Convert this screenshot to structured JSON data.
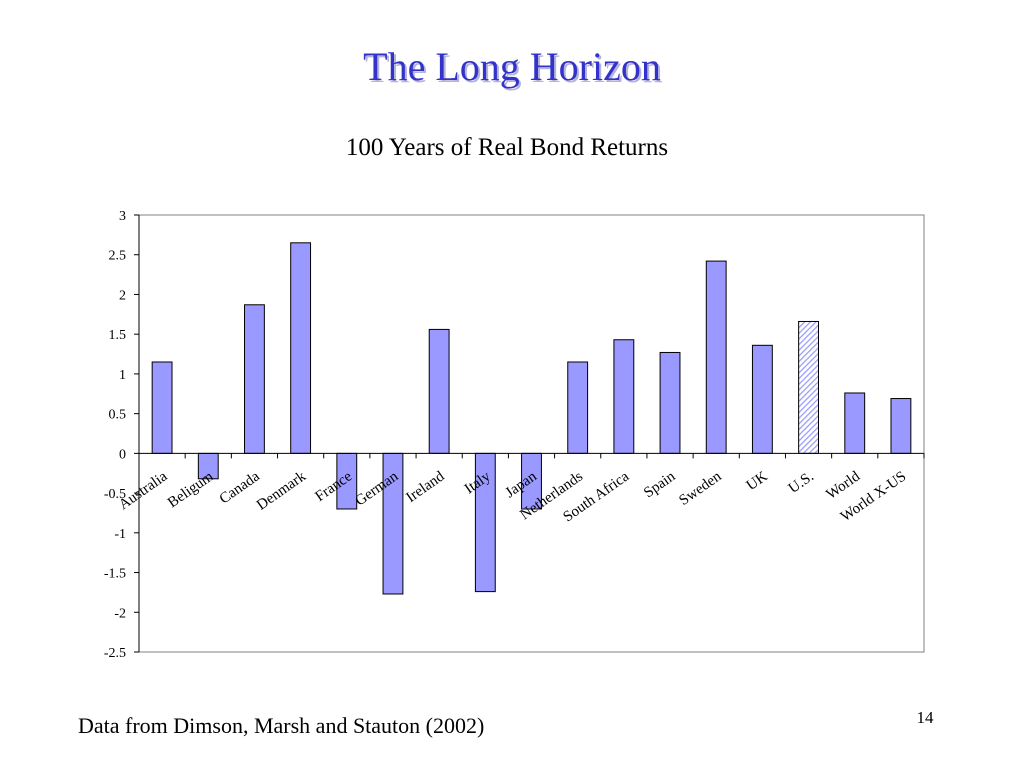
{
  "slide": {
    "title": "The Long Horizon",
    "footnote": "Data from Dimson, Marsh and Stauton (2002)",
    "page_number": "14"
  },
  "colors": {
    "title": "#3333cc",
    "bar_fill": "#9999ff",
    "bar_stroke": "#000000",
    "highlight_hatch": "#9999ff"
  },
  "chart_data": {
    "type": "bar",
    "title": "100 Years of Real Bond Returns",
    "xlabel": "",
    "ylabel": "",
    "ylim": [
      -2.5,
      3
    ],
    "yticks": [
      3,
      2.5,
      2,
      1.5,
      1,
      0.5,
      0,
      -0.5,
      -1,
      -1.5,
      -2,
      -2.5
    ],
    "ytick_labels": [
      "3",
      "2.5",
      "2",
      "1.5",
      "1",
      "0.5",
      "0",
      "-0.5",
      "-1",
      "-1.5",
      "-2",
      "-2.5"
    ],
    "grid": false,
    "legend": "none",
    "categories": [
      "Australia",
      "Beligum",
      "Canada",
      "Denmark",
      "France",
      "German",
      "Ireland",
      "Italy",
      "Japan",
      "Netherlands",
      "South Africa",
      "Spain",
      "Sweden",
      "UK",
      "U.S.",
      "World",
      "World X-US"
    ],
    "values": [
      1.15,
      -0.32,
      1.87,
      2.65,
      -0.7,
      -1.77,
      1.56,
      -1.74,
      -0.7,
      1.15,
      1.43,
      1.27,
      2.42,
      1.36,
      1.66,
      0.76,
      0.69
    ],
    "highlighted": [
      "U.S."
    ]
  }
}
